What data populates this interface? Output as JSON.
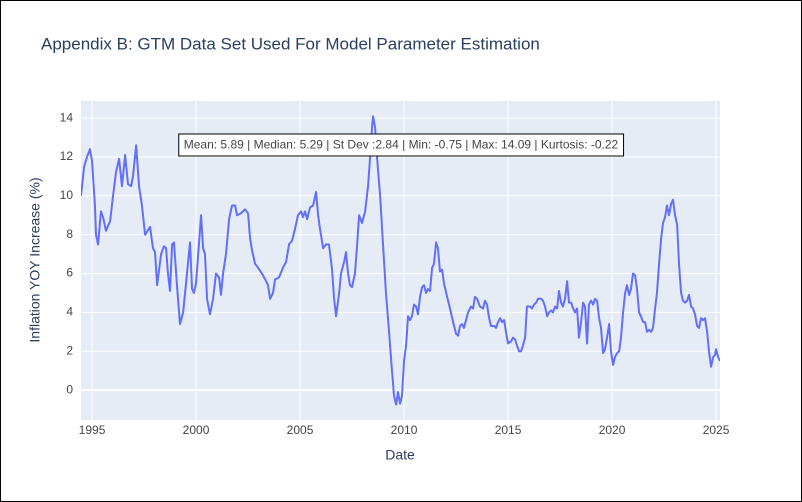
{
  "chart_data": {
    "type": "line",
    "title": "Appendix B: GTM Data Set Used For Model Parameter Estimation",
    "x_label": "Date",
    "y_label": "Inflation YOY Increase (%)",
    "annotation": "Mean: 5.89 | Median: 5.29 | St Dev :2.84 | Min: -0.75 | Max: 14.09 | Kurtosis: -0.22",
    "color": "#636efa",
    "grid": true,
    "xlim": [
      1994.47,
      2025.19
    ],
    "ylim": [
      -1.54,
      14.88
    ],
    "xticks": [
      1995,
      2000,
      2005,
      2010,
      2015,
      2020,
      2025
    ],
    "yticks": [
      0,
      2,
      4,
      6,
      8,
      10,
      12,
      14
    ],
    "x": [
      1994.47,
      1994.62,
      1994.76,
      1994.9,
      1995.0,
      1995.14,
      1995.19,
      1995.29,
      1995.43,
      1995.53,
      1995.67,
      1995.87,
      1996.01,
      1996.15,
      1996.3,
      1996.44,
      1996.59,
      1996.73,
      1996.88,
      1996.97,
      1997.12,
      1997.26,
      1997.4,
      1997.55,
      1997.79,
      1997.93,
      1998.03,
      1998.13,
      1998.32,
      1998.46,
      1998.56,
      1998.65,
      1998.75,
      1998.85,
      1998.94,
      1999.09,
      1999.23,
      1999.38,
      1999.52,
      1999.71,
      1999.81,
      1999.9,
      2000.0,
      2000.14,
      2000.24,
      2000.34,
      2000.43,
      2000.53,
      2000.67,
      2000.82,
      2000.96,
      2001.11,
      2001.2,
      2001.3,
      2001.44,
      2001.59,
      2001.73,
      2001.88,
      2001.97,
      2002.16,
      2002.36,
      2002.5,
      2002.6,
      2002.69,
      2002.84,
      2002.98,
      2003.17,
      2003.37,
      2003.46,
      2003.56,
      2003.7,
      2003.8,
      2003.99,
      2004.18,
      2004.33,
      2004.47,
      2004.62,
      2004.76,
      2004.9,
      2005.05,
      2005.14,
      2005.24,
      2005.34,
      2005.48,
      2005.63,
      2005.77,
      2005.87,
      2005.96,
      2006.11,
      2006.25,
      2006.39,
      2006.54,
      2006.63,
      2006.73,
      2006.88,
      2006.97,
      2007.12,
      2007.21,
      2007.31,
      2007.4,
      2007.5,
      2007.64,
      2007.74,
      2007.84,
      2007.98,
      2008.13,
      2008.27,
      2008.37,
      2008.46,
      2008.51,
      2008.61,
      2008.7,
      2008.85,
      2008.99,
      2009.13,
      2009.28,
      2009.42,
      2009.52,
      2009.62,
      2009.71,
      2009.81,
      2009.9,
      2010.0,
      2010.1,
      2010.19,
      2010.29,
      2010.38,
      2010.48,
      2010.58,
      2010.67,
      2010.77,
      2010.87,
      2010.96,
      2011.06,
      2011.15,
      2011.25,
      2011.35,
      2011.44,
      2011.54,
      2011.63,
      2011.73,
      2011.83,
      2011.92,
      2012.07,
      2012.21,
      2012.36,
      2012.5,
      2012.6,
      2012.69,
      2012.79,
      2012.88,
      2012.98,
      2013.08,
      2013.22,
      2013.32,
      2013.41,
      2013.51,
      2013.65,
      2013.8,
      2013.89,
      2013.99,
      2014.09,
      2014.18,
      2014.33,
      2014.42,
      2014.52,
      2014.62,
      2014.71,
      2014.81,
      2014.9,
      2015.0,
      2015.14,
      2015.24,
      2015.34,
      2015.43,
      2015.53,
      2015.63,
      2015.72,
      2015.82,
      2015.91,
      2016.06,
      2016.15,
      2016.25,
      2016.35,
      2016.44,
      2016.59,
      2016.68,
      2016.78,
      2016.88,
      2016.97,
      2017.07,
      2017.16,
      2017.26,
      2017.36,
      2017.45,
      2017.55,
      2017.64,
      2017.74,
      2017.84,
      2017.93,
      2018.03,
      2018.13,
      2018.22,
      2018.32,
      2018.41,
      2018.51,
      2018.61,
      2018.7,
      2018.8,
      2018.89,
      2018.99,
      2019.09,
      2019.18,
      2019.28,
      2019.38,
      2019.47,
      2019.57,
      2019.66,
      2019.76,
      2019.86,
      2019.95,
      2020.05,
      2020.14,
      2020.24,
      2020.34,
      2020.43,
      2020.53,
      2020.63,
      2020.72,
      2020.82,
      2020.91,
      2021.01,
      2021.11,
      2021.2,
      2021.3,
      2021.39,
      2021.49,
      2021.59,
      2021.68,
      2021.78,
      2021.88,
      2021.97,
      2022.07,
      2022.16,
      2022.26,
      2022.36,
      2022.45,
      2022.55,
      2022.64,
      2022.74,
      2022.84,
      2022.93,
      2023.03,
      2023.13,
      2023.22,
      2023.32,
      2023.41,
      2023.51,
      2023.61,
      2023.7,
      2023.8,
      2023.89,
      2023.99,
      2024.09,
      2024.18,
      2024.28,
      2024.38,
      2024.47,
      2024.57,
      2024.66,
      2024.76,
      2024.86,
      2024.95,
      2025.0,
      2025.1,
      2025.19
    ],
    "values": [
      10.0,
      11.5,
      12.0,
      12.4,
      11.8,
      9.5,
      8.0,
      7.5,
      9.2,
      8.9,
      8.2,
      8.7,
      10.0,
      11.2,
      11.9,
      10.5,
      12.1,
      10.6,
      10.5,
      11.0,
      12.6,
      10.5,
      9.5,
      8.0,
      8.4,
      7.3,
      7.1,
      5.4,
      7.0,
      7.4,
      7.3,
      6.0,
      5.1,
      7.5,
      7.6,
      5.3,
      3.4,
      4.0,
      5.5,
      7.6,
      5.2,
      5.0,
      5.5,
      7.5,
      9.0,
      7.3,
      7.0,
      4.7,
      3.9,
      4.7,
      6.0,
      5.8,
      4.9,
      6.0,
      7.0,
      8.8,
      9.5,
      9.5,
      9.0,
      9.1,
      9.3,
      9.1,
      7.8,
      7.2,
      6.5,
      6.3,
      6.0,
      5.6,
      5.4,
      4.7,
      5.0,
      5.7,
      5.8,
      6.3,
      6.6,
      7.5,
      7.7,
      8.3,
      9.0,
      9.2,
      8.9,
      9.2,
      8.8,
      9.4,
      9.5,
      10.2,
      9.0,
      8.3,
      7.3,
      7.5,
      7.5,
      6.2,
      4.8,
      3.8,
      5.0,
      6.0,
      6.6,
      7.1,
      6.0,
      5.4,
      5.3,
      6.0,
      7.4,
      9.0,
      8.6,
      9.2,
      10.5,
      12.0,
      13.5,
      14.09,
      13.5,
      12.0,
      10.0,
      7.5,
      5.0,
      3.0,
      1.0,
      -0.3,
      -0.75,
      -0.1,
      -0.7,
      -0.3,
      1.5,
      2.3,
      3.8,
      3.6,
      3.8,
      4.4,
      4.3,
      3.9,
      4.8,
      5.3,
      5.4,
      5.0,
      5.2,
      5.1,
      6.3,
      6.5,
      7.6,
      7.3,
      6.1,
      6.2,
      5.5,
      4.8,
      4.2,
      3.5,
      2.9,
      2.8,
      3.3,
      3.4,
      3.2,
      3.6,
      4.0,
      4.3,
      4.2,
      4.8,
      4.7,
      4.3,
      4.2,
      4.6,
      4.4,
      3.7,
      3.3,
      3.3,
      3.2,
      3.5,
      3.7,
      3.5,
      3.6,
      3.0,
      2.4,
      2.5,
      2.7,
      2.6,
      2.3,
      2.0,
      2.0,
      2.3,
      2.7,
      4.3,
      4.3,
      4.2,
      4.4,
      4.5,
      4.7,
      4.7,
      4.6,
      4.3,
      3.8,
      4.0,
      4.1,
      4.0,
      4.3,
      4.2,
      5.1,
      4.5,
      4.3,
      4.7,
      5.6,
      4.5,
      4.5,
      4.2,
      4.0,
      4.2,
      2.7,
      3.5,
      4.5,
      4.3,
      2.4,
      4.4,
      4.6,
      4.4,
      4.7,
      4.6,
      3.7,
      3.2,
      1.9,
      2.1,
      2.7,
      3.4,
      2.0,
      1.3,
      1.7,
      1.9,
      2.0,
      2.7,
      4.0,
      5.0,
      5.4,
      4.9,
      5.2,
      6.0,
      5.9,
      5.2,
      4.0,
      3.8,
      3.5,
      3.5,
      3.0,
      3.1,
      3.0,
      3.2,
      4.2,
      5.0,
      6.5,
      7.8,
      8.6,
      8.9,
      9.5,
      9.0,
      9.6,
      9.8,
      9.0,
      8.5,
      6.5,
      5.0,
      4.6,
      4.5,
      4.6,
      4.9,
      4.3,
      4.2,
      3.9,
      3.3,
      3.2,
      3.7,
      3.6,
      3.7,
      3.0,
      2.0,
      1.2,
      1.7,
      1.8,
      2.1,
      1.7,
      1.5
    ]
  }
}
